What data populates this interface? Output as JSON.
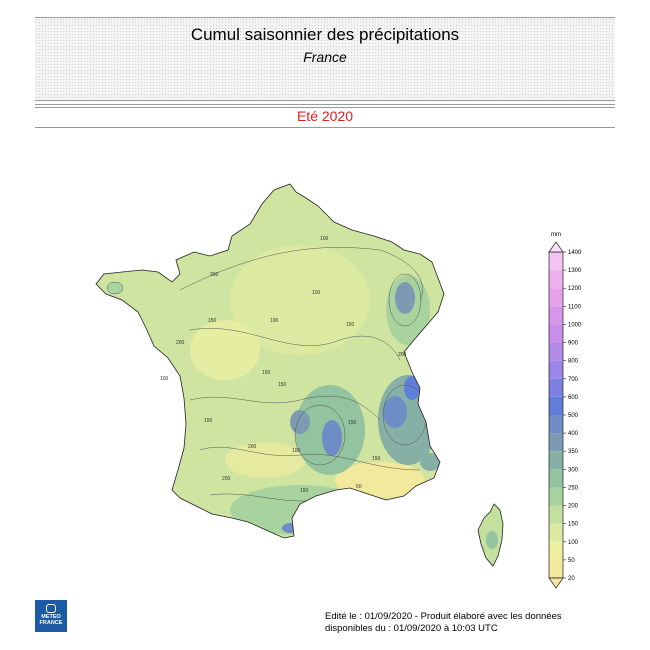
{
  "header": {
    "title": "Cumul saisonnier des précipitations",
    "subtitle": "France"
  },
  "season": "Eté 2020",
  "legend": {
    "unit": "mm",
    "levels": [
      20,
      50,
      100,
      150,
      200,
      250,
      300,
      350,
      400,
      500,
      600,
      700,
      800,
      900,
      1000,
      1100,
      1200,
      1300,
      1400
    ],
    "colors": [
      "#f5e9a0",
      "#eef0a0",
      "#dbeaa0",
      "#c3e09e",
      "#a9d39e",
      "#94c39f",
      "#86b0a6",
      "#7e9ab3",
      "#6e8cc6",
      "#5f7ed8",
      "#7d80e0",
      "#9a86e8",
      "#b48ae8",
      "#c98eea",
      "#d896ea",
      "#e4a2ea",
      "#eeb0ec",
      "#f4c4f0"
    ]
  },
  "map_labels": {
    "contour_values": [
      "200",
      "100",
      "150",
      "100",
      "200",
      "150",
      "150",
      "100",
      "150",
      "200",
      "150",
      "100",
      "200",
      "150",
      "50",
      "150",
      "100",
      "200",
      "150"
    ]
  },
  "footer": {
    "line1": "Edité le : 01/09/2020 - Produit élaboré avec les données",
    "line2": "disponibles du : 01/09/2020 à 10:03 UTC"
  },
  "logo": {
    "line1": "METEO",
    "line2": "FRANCE"
  }
}
